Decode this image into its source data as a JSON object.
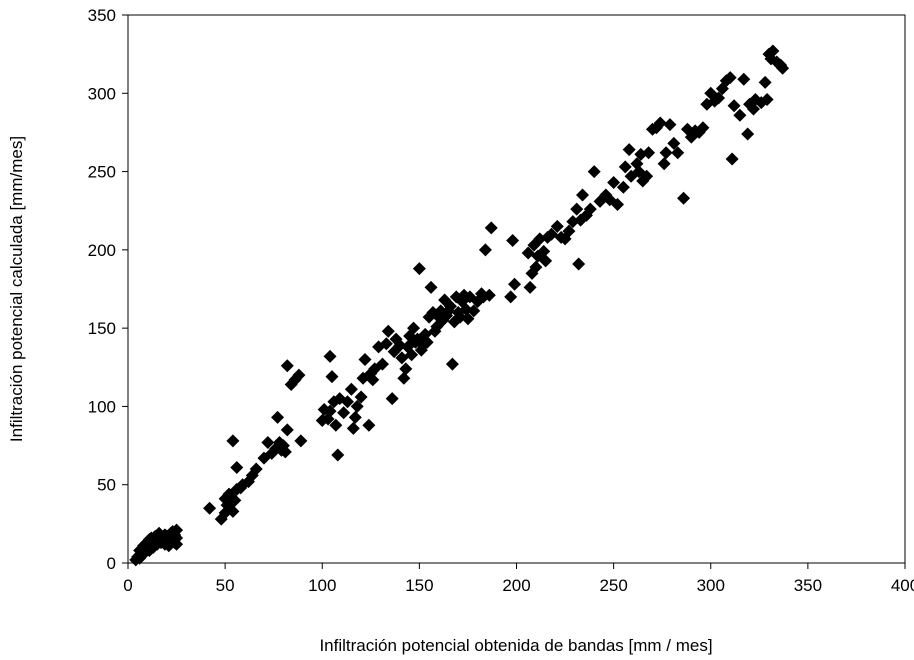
{
  "chart_data": {
    "type": "scatter",
    "title": "",
    "xlabel": "Infiltración potencial obtenida de bandas [mm / mes]",
    "ylabel": "Infiltración potencial  calculada [mm/mes]",
    "xlim": [
      0,
      400
    ],
    "ylim": [
      0,
      350
    ],
    "x_ticks": [
      "0",
      "50",
      "100",
      "150",
      "200",
      "250",
      "300",
      "350",
      "400"
    ],
    "y_ticks": [
      "0",
      "50",
      "100",
      "150",
      "200",
      "250",
      "300",
      "350"
    ],
    "grid": false,
    "legend": "none",
    "marker": "diamond",
    "marker_color": "#000000",
    "series": [
      {
        "points": [
          [
            4,
            2
          ],
          [
            5,
            4
          ],
          [
            6,
            3
          ],
          [
            6,
            8
          ],
          [
            7,
            5
          ],
          [
            7,
            9
          ],
          [
            8,
            6
          ],
          [
            8,
            11
          ],
          [
            9,
            7
          ],
          [
            9,
            12
          ],
          [
            10,
            9
          ],
          [
            10,
            13
          ],
          [
            11,
            8
          ],
          [
            11,
            15
          ],
          [
            12,
            11
          ],
          [
            12,
            16
          ],
          [
            13,
            10
          ],
          [
            13,
            14
          ],
          [
            14,
            13
          ],
          [
            14,
            17
          ],
          [
            15,
            12
          ],
          [
            15,
            16
          ],
          [
            16,
            14
          ],
          [
            16,
            19
          ],
          [
            17,
            13
          ],
          [
            17,
            17
          ],
          [
            18,
            15
          ],
          [
            19,
            12
          ],
          [
            19,
            18
          ],
          [
            20,
            14
          ],
          [
            20,
            17
          ],
          [
            21,
            11
          ],
          [
            21,
            16
          ],
          [
            22,
            13
          ],
          [
            22,
            19
          ],
          [
            23,
            15
          ],
          [
            23,
            20
          ],
          [
            24,
            13
          ],
          [
            24,
            18
          ],
          [
            25,
            16
          ],
          [
            25,
            21
          ],
          [
            25,
            12
          ],
          [
            42,
            35
          ],
          [
            48,
            28
          ],
          [
            50,
            32
          ],
          [
            50,
            41
          ],
          [
            51,
            37
          ],
          [
            52,
            44
          ],
          [
            53,
            38
          ],
          [
            54,
            33
          ],
          [
            54,
            78
          ],
          [
            55,
            40
          ],
          [
            56,
            47
          ],
          [
            56,
            61
          ],
          [
            58,
            48
          ],
          [
            59,
            50
          ],
          [
            62,
            52
          ],
          [
            64,
            56
          ],
          [
            66,
            60
          ],
          [
            70,
            67
          ],
          [
            72,
            77
          ],
          [
            74,
            70
          ],
          [
            76,
            73
          ],
          [
            77,
            93
          ],
          [
            78,
            77
          ],
          [
            79,
            72
          ],
          [
            80,
            75
          ],
          [
            81,
            71
          ],
          [
            82,
            126
          ],
          [
            82,
            85
          ],
          [
            84,
            114
          ],
          [
            86,
            117
          ],
          [
            88,
            120
          ],
          [
            89,
            78
          ],
          [
            100,
            91
          ],
          [
            101,
            98
          ],
          [
            103,
            92
          ],
          [
            104,
            97
          ],
          [
            104,
            132
          ],
          [
            105,
            119
          ],
          [
            106,
            103
          ],
          [
            107,
            88
          ],
          [
            108,
            69
          ],
          [
            109,
            105
          ],
          [
            111,
            96
          ],
          [
            113,
            103
          ],
          [
            115,
            111
          ],
          [
            116,
            86
          ],
          [
            117,
            93
          ],
          [
            118,
            100
          ],
          [
            120,
            106
          ],
          [
            121,
            118
          ],
          [
            122,
            130
          ],
          [
            124,
            88
          ],
          [
            125,
            121
          ],
          [
            126,
            117
          ],
          [
            127,
            124
          ],
          [
            129,
            138
          ],
          [
            131,
            127
          ],
          [
            133,
            140
          ],
          [
            134,
            148
          ],
          [
            136,
            105
          ],
          [
            137,
            135
          ],
          [
            138,
            143
          ],
          [
            140,
            139
          ],
          [
            141,
            131
          ],
          [
            142,
            118
          ],
          [
            143,
            124
          ],
          [
            144,
            138
          ],
          [
            145,
            145
          ],
          [
            146,
            133
          ],
          [
            147,
            150
          ],
          [
            148,
            141
          ],
          [
            149,
            143
          ],
          [
            150,
            188
          ],
          [
            151,
            136
          ],
          [
            152,
            139
          ],
          [
            153,
            146
          ],
          [
            154,
            141
          ],
          [
            155,
            157
          ],
          [
            156,
            176
          ],
          [
            157,
            160
          ],
          [
            158,
            148
          ],
          [
            159,
            151
          ],
          [
            160,
            157
          ],
          [
            161,
            161
          ],
          [
            162,
            155
          ],
          [
            163,
            168
          ],
          [
            164,
            158
          ],
          [
            165,
            161
          ],
          [
            166,
            164
          ],
          [
            167,
            127
          ],
          [
            168,
            154
          ],
          [
            169,
            170
          ],
          [
            170,
            160
          ],
          [
            171,
            157
          ],
          [
            172,
            167
          ],
          [
            173,
            171
          ],
          [
            174,
            162
          ],
          [
            175,
            156
          ],
          [
            176,
            170
          ],
          [
            178,
            161
          ],
          [
            180,
            167
          ],
          [
            182,
            172
          ],
          [
            183,
            170
          ],
          [
            184,
            200
          ],
          [
            186,
            171
          ],
          [
            187,
            214
          ],
          [
            197,
            170
          ],
          [
            198,
            206
          ],
          [
            199,
            178
          ],
          [
            206,
            198
          ],
          [
            207,
            176
          ],
          [
            208,
            185
          ],
          [
            209,
            203
          ],
          [
            210,
            189
          ],
          [
            211,
            196
          ],
          [
            212,
            207
          ],
          [
            214,
            199
          ],
          [
            215,
            193
          ],
          [
            216,
            208
          ],
          [
            218,
            210
          ],
          [
            221,
            215
          ],
          [
            223,
            208
          ],
          [
            225,
            207
          ],
          [
            227,
            212
          ],
          [
            229,
            218
          ],
          [
            231,
            226
          ],
          [
            232,
            191
          ],
          [
            233,
            219
          ],
          [
            234,
            235
          ],
          [
            236,
            222
          ],
          [
            238,
            226
          ],
          [
            240,
            250
          ],
          [
            243,
            231
          ],
          [
            246,
            235
          ],
          [
            248,
            232
          ],
          [
            250,
            243
          ],
          [
            252,
            229
          ],
          [
            255,
            240
          ],
          [
            256,
            253
          ],
          [
            258,
            264
          ],
          [
            259,
            247
          ],
          [
            262,
            255
          ],
          [
            263,
            250
          ],
          [
            264,
            261
          ],
          [
            265,
            244
          ],
          [
            267,
            247
          ],
          [
            268,
            262
          ],
          [
            270,
            277
          ],
          [
            272,
            278
          ],
          [
            274,
            281
          ],
          [
            276,
            255
          ],
          [
            277,
            262
          ],
          [
            279,
            280
          ],
          [
            281,
            268
          ],
          [
            283,
            262
          ],
          [
            286,
            233
          ],
          [
            288,
            277
          ],
          [
            290,
            272
          ],
          [
            292,
            276
          ],
          [
            294,
            275
          ],
          [
            296,
            278
          ],
          [
            298,
            293
          ],
          [
            300,
            300
          ],
          [
            302,
            295
          ],
          [
            304,
            297
          ],
          [
            306,
            303
          ],
          [
            308,
            308
          ],
          [
            310,
            310
          ],
          [
            311,
            258
          ],
          [
            312,
            292
          ],
          [
            315,
            286
          ],
          [
            317,
            309
          ],
          [
            319,
            274
          ],
          [
            320,
            293
          ],
          [
            322,
            290
          ],
          [
            323,
            296
          ],
          [
            326,
            294
          ],
          [
            328,
            307
          ],
          [
            329,
            296
          ],
          [
            330,
            325
          ],
          [
            331,
            322
          ],
          [
            332,
            327
          ],
          [
            334,
            320
          ],
          [
            336,
            318
          ],
          [
            337,
            316
          ]
        ]
      }
    ]
  }
}
